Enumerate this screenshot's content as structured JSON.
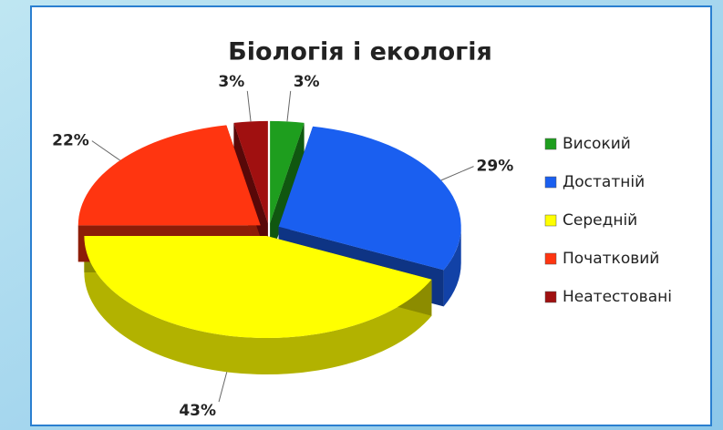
{
  "chart_data": {
    "type": "pie",
    "title": "Біологія і екологія",
    "categories": [
      "Високий",
      "Достатній",
      "Середній",
      "Початковий",
      "Неатестовані"
    ],
    "values": [
      3,
      29,
      43,
      22,
      3
    ],
    "value_labels": [
      "3%",
      "29%",
      "43%",
      "22%",
      "3%"
    ],
    "colors": [
      "#1e9e1e",
      "#1a5ff0",
      "#ffff00",
      "#ff3510",
      "#a01010"
    ],
    "legend": "right"
  }
}
